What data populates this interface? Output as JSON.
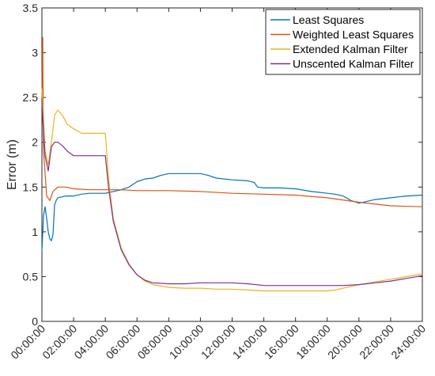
{
  "chart_data": {
    "type": "line",
    "title": "",
    "xlabel": "",
    "ylabel": "Error (m)",
    "xlim": [
      0,
      24
    ],
    "ylim": [
      0,
      3.5
    ],
    "x_ticks": [
      0,
      2,
      4,
      6,
      8,
      10,
      12,
      14,
      16,
      18,
      20,
      22,
      24
    ],
    "x_tick_labels": [
      "00:00:00",
      "02:00:00",
      "04:00:00",
      "06:00:00",
      "08:00:00",
      "10:00:00",
      "12:00:00",
      "14:00:00",
      "16:00:00",
      "18:00:00",
      "20:00:00",
      "22:00:00",
      "24:00:00"
    ],
    "y_ticks": [
      0,
      0.5,
      1,
      1.5,
      2,
      2.5,
      3,
      3.5
    ],
    "y_tick_labels": [
      "0",
      "0.5",
      "1",
      "1.5",
      "2",
      "2.5",
      "3",
      "3.5"
    ],
    "grid": false,
    "legend_position": "top-right",
    "series": [
      {
        "name": "Least Squares",
        "color": "#0072BD",
        "x": [
          0,
          0.1,
          0.2,
          0.3,
          0.4,
          0.5,
          0.6,
          0.7,
          0.8,
          0.9,
          1.0,
          1.5,
          2.0,
          2.5,
          3.0,
          3.5,
          4.0,
          4.5,
          5.0,
          5.5,
          6.0,
          6.5,
          7.0,
          7.5,
          8.0,
          9.0,
          10.0,
          10.5,
          11.0,
          12.0,
          13.0,
          13.4,
          13.6,
          14.0,
          15.0,
          16.0,
          17.0,
          18.0,
          18.5,
          19.0,
          19.5,
          20.0,
          20.5,
          21.0,
          22.0,
          23.0,
          24.0
        ],
        "y": [
          0.78,
          1.18,
          1.28,
          1.15,
          1.0,
          0.92,
          0.9,
          0.97,
          1.3,
          1.35,
          1.38,
          1.4,
          1.4,
          1.42,
          1.43,
          1.43,
          1.43,
          1.45,
          1.47,
          1.5,
          1.56,
          1.59,
          1.6,
          1.63,
          1.65,
          1.65,
          1.65,
          1.63,
          1.6,
          1.58,
          1.57,
          1.55,
          1.5,
          1.49,
          1.49,
          1.48,
          1.45,
          1.43,
          1.42,
          1.4,
          1.35,
          1.32,
          1.34,
          1.36,
          1.38,
          1.4,
          1.41
        ]
      },
      {
        "name": "Weighted Least Squares",
        "color": "#D95319",
        "x": [
          0,
          0.05,
          0.1,
          0.3,
          0.5,
          0.7,
          1.0,
          1.5,
          2.0,
          3.0,
          4.0,
          5.0,
          6.0,
          8.0,
          10.0,
          12.0,
          14.0,
          16.0,
          18.0,
          20.0,
          22.0,
          24.0
        ],
        "y": [
          2.5,
          3.17,
          1.9,
          1.4,
          1.35,
          1.45,
          1.5,
          1.5,
          1.48,
          1.47,
          1.47,
          1.47,
          1.46,
          1.46,
          1.45,
          1.43,
          1.42,
          1.41,
          1.38,
          1.33,
          1.29,
          1.28
        ]
      },
      {
        "name": "Extended Kalman Filter",
        "color": "#EDB120",
        "x": [
          0,
          0.1,
          0.2,
          0.4,
          0.6,
          0.8,
          1.0,
          1.3,
          1.6,
          2.0,
          2.5,
          3.0,
          3.5,
          4.0,
          4.2,
          4.5,
          5.0,
          5.5,
          6.0,
          6.5,
          7.0,
          8.0,
          9.0,
          10.0,
          11.0,
          12.0,
          13.0,
          14.0,
          15.0,
          16.0,
          17.0,
          18.0,
          18.5,
          19.0,
          20.0,
          21.0,
          22.0,
          23.0,
          24.0
        ],
        "y": [
          2.6,
          2.3,
          1.9,
          1.75,
          2.0,
          2.3,
          2.36,
          2.3,
          2.2,
          2.15,
          2.1,
          2.1,
          2.1,
          2.1,
          1.6,
          1.15,
          0.82,
          0.64,
          0.52,
          0.45,
          0.41,
          0.38,
          0.37,
          0.37,
          0.36,
          0.36,
          0.35,
          0.34,
          0.34,
          0.34,
          0.34,
          0.34,
          0.35,
          0.37,
          0.41,
          0.44,
          0.47,
          0.5,
          0.53
        ]
      },
      {
        "name": "Unscented Kalman Filter",
        "color": "#7E2F8E",
        "x": [
          0,
          0.1,
          0.2,
          0.4,
          0.6,
          0.8,
          1.0,
          1.3,
          1.6,
          2.0,
          2.5,
          3.0,
          3.5,
          4.0,
          4.2,
          4.5,
          5.0,
          5.5,
          6.0,
          6.5,
          7.0,
          8.0,
          9.0,
          10.0,
          11.0,
          12.0,
          13.0,
          14.0,
          15.0,
          16.0,
          17.0,
          18.0,
          19.0,
          20.0,
          21.0,
          22.0,
          23.0,
          24.0
        ],
        "y": [
          2.45,
          2.1,
          1.85,
          1.68,
          1.95,
          2.0,
          2.0,
          1.96,
          1.9,
          1.85,
          1.85,
          1.85,
          1.85,
          1.85,
          1.5,
          1.12,
          0.8,
          0.63,
          0.52,
          0.46,
          0.43,
          0.42,
          0.42,
          0.43,
          0.43,
          0.43,
          0.42,
          0.4,
          0.4,
          0.4,
          0.4,
          0.4,
          0.4,
          0.41,
          0.43,
          0.45,
          0.48,
          0.51
        ]
      }
    ]
  }
}
